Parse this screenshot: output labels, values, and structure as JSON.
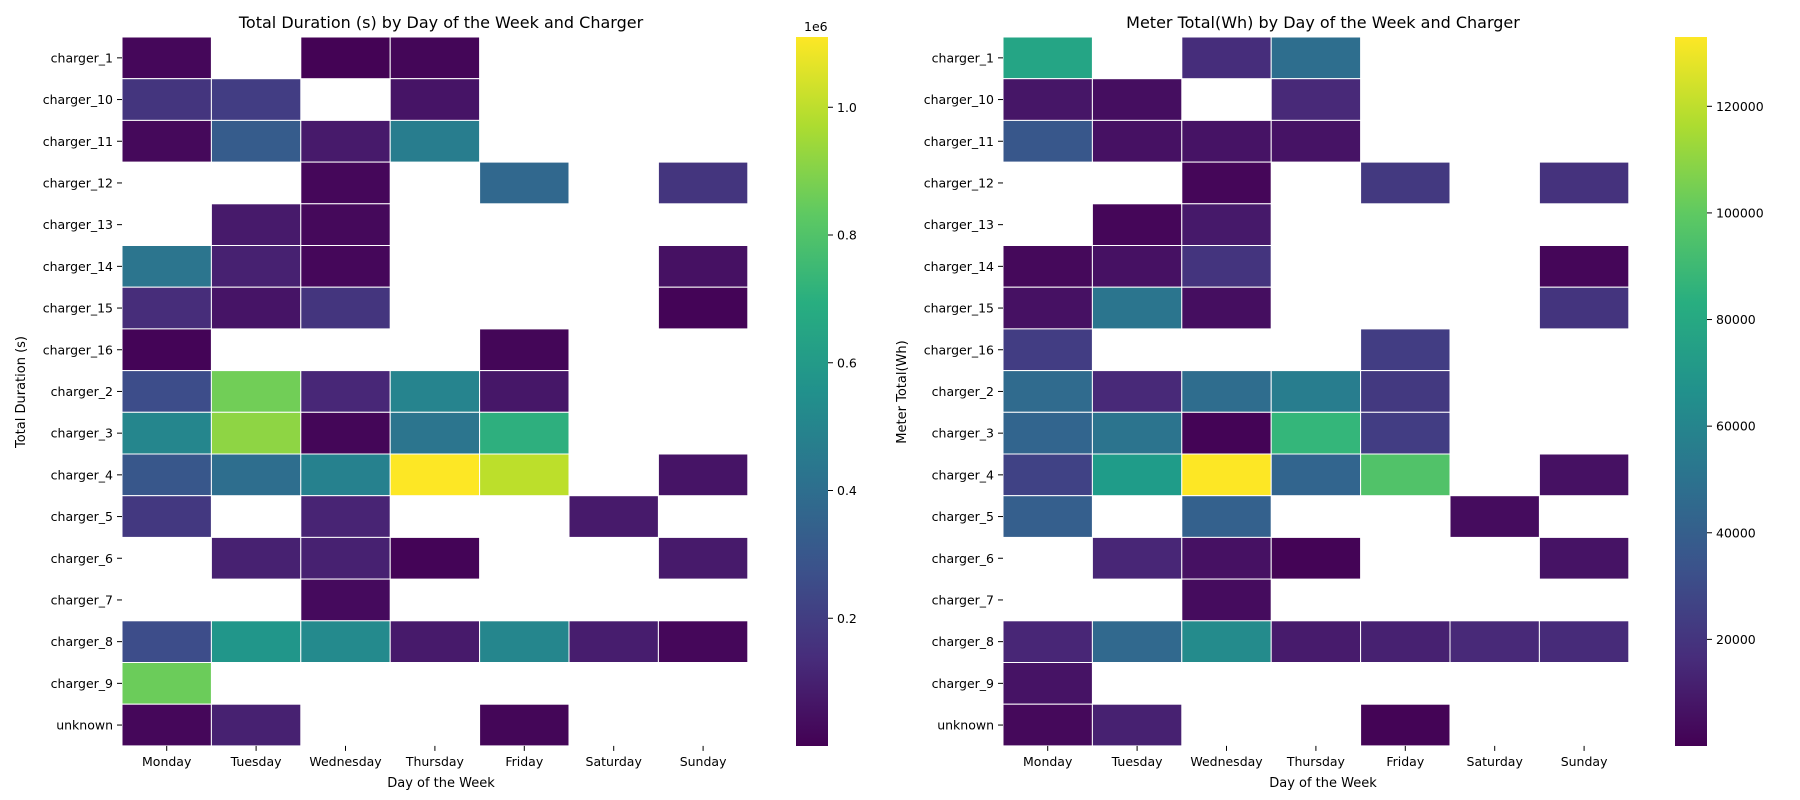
{
  "chart_data": [
    {
      "type": "heatmap",
      "title": "Total Duration (s) by Day of the Week and Charger",
      "xlabel": "Day of the Week",
      "ylabel": "Total Duration (s)",
      "colormap": "viridis",
      "colorbar_range": [
        0,
        1110000
      ],
      "colorbar_ticks": [
        "0.2",
        "0.4",
        "0.6",
        "0.8",
        "1.0"
      ],
      "colorbar_offset_text": "1e6",
      "x_categories": [
        "Monday",
        "Tuesday",
        "Wednesday",
        "Thursday",
        "Friday",
        "Saturday",
        "Sunday"
      ],
      "y_categories": [
        "charger_1",
        "charger_10",
        "charger_11",
        "charger_12",
        "charger_13",
        "charger_14",
        "charger_15",
        "charger_16",
        "charger_2",
        "charger_3",
        "charger_4",
        "charger_5",
        "charger_6",
        "charger_7",
        "charger_8",
        "charger_9",
        "unknown"
      ],
      "values": [
        [
          20000,
          null,
          5000,
          15000,
          null,
          null,
          null
        ],
        [
          170000,
          200000,
          null,
          60000,
          null,
          null,
          null
        ],
        [
          25000,
          320000,
          80000,
          470000,
          null,
          null,
          null
        ],
        [
          null,
          null,
          20000,
          null,
          370000,
          null,
          170000
        ],
        [
          null,
          80000,
          25000,
          null,
          null,
          null,
          null
        ],
        [
          430000,
          100000,
          20000,
          null,
          null,
          null,
          50000
        ],
        [
          140000,
          60000,
          170000,
          null,
          null,
          null,
          10000
        ],
        [
          10000,
          null,
          null,
          null,
          15000,
          null,
          null
        ],
        [
          260000,
          870000,
          120000,
          500000,
          70000,
          null,
          null
        ],
        [
          510000,
          920000,
          15000,
          430000,
          700000,
          null,
          null
        ],
        [
          300000,
          400000,
          490000,
          1110000,
          1000000,
          null,
          60000
        ],
        [
          180000,
          null,
          110000,
          null,
          null,
          80000,
          null
        ],
        [
          null,
          100000,
          100000,
          10000,
          null,
          null,
          80000
        ],
        [
          null,
          null,
          30000,
          null,
          null,
          null,
          null
        ],
        [
          260000,
          580000,
          530000,
          80000,
          510000,
          90000,
          20000
        ],
        [
          860000,
          null,
          null,
          null,
          null,
          null,
          null
        ],
        [
          20000,
          100000,
          null,
          null,
          15000,
          null,
          null
        ]
      ]
    },
    {
      "type": "heatmap",
      "title": "Meter Total(Wh) by Day of the Week and Charger",
      "xlabel": "Day of the Week",
      "ylabel": "Meter Total(Wh)",
      "colormap": "viridis",
      "colorbar_range": [
        0,
        133000
      ],
      "colorbar_ticks": [
        "20000",
        "40000",
        "60000",
        "80000",
        "100000",
        "120000"
      ],
      "x_categories": [
        "Monday",
        "Tuesday",
        "Wednesday",
        "Thursday",
        "Friday",
        "Saturday",
        "Sunday"
      ],
      "y_categories": [
        "charger_1",
        "charger_10",
        "charger_11",
        "charger_12",
        "charger_13",
        "charger_14",
        "charger_15",
        "charger_16",
        "charger_2",
        "charger_3",
        "charger_4",
        "charger_5",
        "charger_6",
        "charger_7",
        "charger_8",
        "charger_9",
        "unknown"
      ],
      "values": [
        [
          78000,
          null,
          17000,
          48000,
          null,
          null,
          null
        ],
        [
          8000,
          5000,
          null,
          15000,
          null,
          null,
          null
        ],
        [
          36000,
          6000,
          7000,
          7000,
          null,
          null,
          null
        ],
        [
          null,
          null,
          2000,
          null,
          22000,
          null,
          19000
        ],
        [
          null,
          2000,
          9000,
          null,
          null,
          null,
          null
        ],
        [
          3000,
          6000,
          20000,
          null,
          null,
          null,
          2000
        ],
        [
          6000,
          52000,
          5000,
          null,
          null,
          null,
          20000
        ],
        [
          24000,
          null,
          null,
          null,
          24000,
          null,
          null
        ],
        [
          46000,
          15000,
          47000,
          56000,
          22000,
          null,
          null
        ],
        [
          43000,
          51000,
          1000,
          88000,
          24000,
          null,
          null
        ],
        [
          26000,
          73000,
          133000,
          43000,
          96000,
          null,
          6000
        ],
        [
          40000,
          null,
          41000,
          null,
          null,
          4000,
          null
        ],
        [
          null,
          14000,
          6000,
          1000,
          null,
          null,
          7000
        ],
        [
          null,
          null,
          4000,
          null,
          null,
          null,
          null
        ],
        [
          14000,
          45000,
          64000,
          10000,
          12000,
          15000,
          16000
        ],
        [
          7000,
          null,
          null,
          null,
          null,
          null,
          null
        ],
        [
          3000,
          12000,
          null,
          null,
          1000,
          null,
          null
        ]
      ]
    }
  ]
}
